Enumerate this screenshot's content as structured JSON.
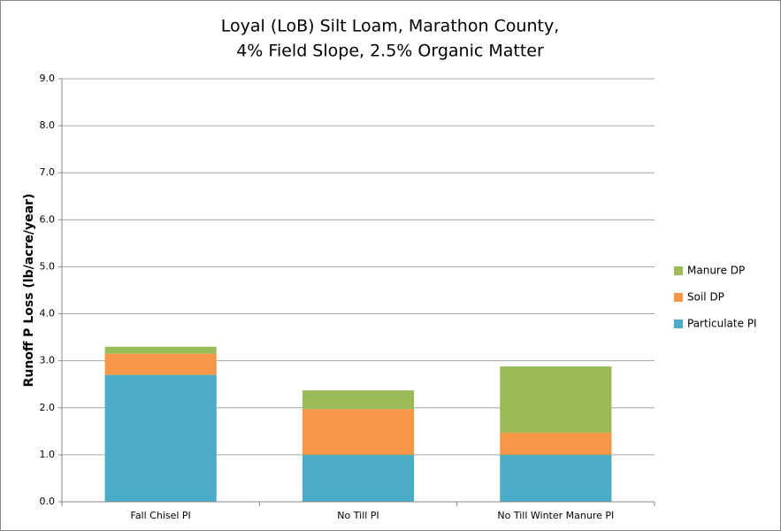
{
  "chart_data": {
    "type": "stacked_bar",
    "title": [
      "Loyal (LoB) Silt Loam, Marathon County,",
      "4% Field Slope, 2.5% Organic Matter"
    ],
    "y_label": "Runoff P Loss (lb/acre/year)",
    "categories": [
      "Fall Chisel PI",
      "No Till PI",
      "No Till Winter Manure PI"
    ],
    "series": [
      {
        "name": "Particulate PI",
        "color": "#4bacc6",
        "values": [
          2.7,
          1.0,
          1.0
        ]
      },
      {
        "name": "Soil DP",
        "color": "#f79646",
        "values": [
          0.45,
          0.97,
          0.47
        ]
      },
      {
        "name": "Manure DP",
        "color": "#9bbb59",
        "values": [
          0.15,
          0.4,
          1.41
        ]
      }
    ],
    "ylim": [
      0,
      9
    ],
    "yticks": [
      {
        "value": 0,
        "label": "0.0"
      },
      {
        "value": 1,
        "label": "1.0"
      },
      {
        "value": 2,
        "label": "2.0"
      },
      {
        "value": 3,
        "label": "3.0"
      },
      {
        "value": 4,
        "label": "4.0"
      },
      {
        "value": 5,
        "label": "5.0"
      },
      {
        "value": 6,
        "label": "6.0"
      },
      {
        "value": 7,
        "label": "7.0"
      },
      {
        "value": 8,
        "label": "8.0"
      },
      {
        "value": 9,
        "label": "9.0"
      }
    ],
    "grid": true,
    "legend": "right"
  }
}
